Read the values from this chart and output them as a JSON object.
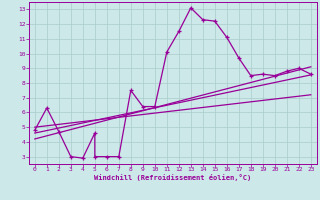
{
  "background_color": "#cce8e8",
  "grid_color": "#aacccc",
  "line_color": "#990099",
  "xlabel": "Windchill (Refroidissement éolien,°C)",
  "xlim": [
    -0.5,
    23.5
  ],
  "ylim": [
    2.5,
    13.5
  ],
  "yticks": [
    3,
    4,
    5,
    6,
    7,
    8,
    9,
    10,
    11,
    12,
    13
  ],
  "xticks": [
    0,
    1,
    2,
    3,
    4,
    5,
    6,
    7,
    8,
    9,
    10,
    11,
    12,
    13,
    14,
    15,
    16,
    17,
    18,
    19,
    20,
    21,
    22,
    23
  ],
  "main_x": [
    0,
    1,
    2,
    3,
    4,
    5,
    5,
    6,
    7,
    8,
    9,
    10,
    11,
    12,
    13,
    14,
    15,
    16,
    17,
    18,
    19,
    20,
    21,
    22,
    23
  ],
  "main_y": [
    4.8,
    6.3,
    4.7,
    3.0,
    2.9,
    4.6,
    3.0,
    3.0,
    3.0,
    7.5,
    6.4,
    6.4,
    10.1,
    11.5,
    13.1,
    12.3,
    12.2,
    11.1,
    9.7,
    8.5,
    8.6,
    8.5,
    8.8,
    9.0,
    8.6
  ],
  "trend1_x": [
    0,
    23
  ],
  "trend1_y": [
    5.0,
    7.2
  ],
  "trend2_x": [
    0,
    23
  ],
  "trend2_y": [
    4.6,
    8.55
  ],
  "trend3_x": [
    0,
    23
  ],
  "trend3_y": [
    4.2,
    9.1
  ]
}
